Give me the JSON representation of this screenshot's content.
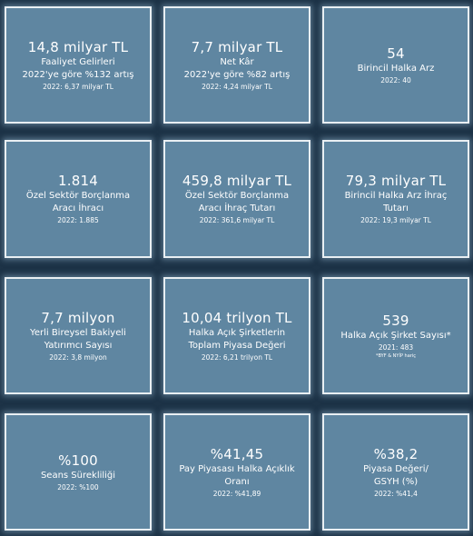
{
  "cards": [
    {
      "value": "14,8 milyar TL",
      "label1": "Faaliyet Gelirleri",
      "label2": "2022'ye göre %132 artış",
      "sub": "2022: 6,37 milyar TL",
      "note": ""
    },
    {
      "value": "7,7 milyar TL",
      "label1": "Net Kâr",
      "label2": "2022'ye göre %82 artış",
      "sub": "2022: 4,24 milyar TL",
      "note": ""
    },
    {
      "value": "54",
      "label1": "Birincil Halka Arz",
      "label2": "",
      "sub": "2022: 40",
      "note": ""
    },
    {
      "value": "1.814",
      "label1": "Özel Sektör Borçlanma",
      "label2": "Aracı İhracı",
      "sub": "2022: 1.885",
      "note": ""
    },
    {
      "value": "459,8 milyar TL",
      "label1": "Özel Sektör Borçlanma",
      "label2": "Aracı İhraç Tutarı",
      "sub": "2022: 361,6 milyar TL",
      "note": ""
    },
    {
      "value": "79,3 milyar TL",
      "label1": "Birincil Halka Arz İhraç",
      "label2": "Tutarı",
      "sub": "2022: 19,3 milyar TL",
      "note": ""
    },
    {
      "value": "7,7 milyon",
      "label1": "Yerli Bireysel Bakiyeli",
      "label2": "Yatırımcı Sayısı",
      "sub": "2022: 3,8 milyon",
      "note": ""
    },
    {
      "value": "10,04 trilyon TL",
      "label1": "Halka Açık Şirketlerin",
      "label2": "Toplam Piyasa Değeri",
      "sub": "2022: 6,21 trilyon TL",
      "note": ""
    },
    {
      "value": "539",
      "label1": "Halka Açık Şirket Sayısı*",
      "label2": "",
      "sub": "2021: 483",
      "note": "*BYF & NYİP hariç"
    },
    {
      "value": "%100",
      "label1": "Seans Sürekliliği",
      "label2": "",
      "sub": "2022: %100",
      "note": ""
    },
    {
      "value": "%41,45",
      "label1": "Pay Piyasası Halka Açıklık",
      "label2": "Oranı",
      "sub": "2022: %41,89",
      "note": ""
    },
    {
      "value": "%38,2",
      "label1": "Piyasa Değeri/",
      "label2": "GSYH (%)",
      "sub": "2022: %41,4",
      "note": ""
    }
  ]
}
